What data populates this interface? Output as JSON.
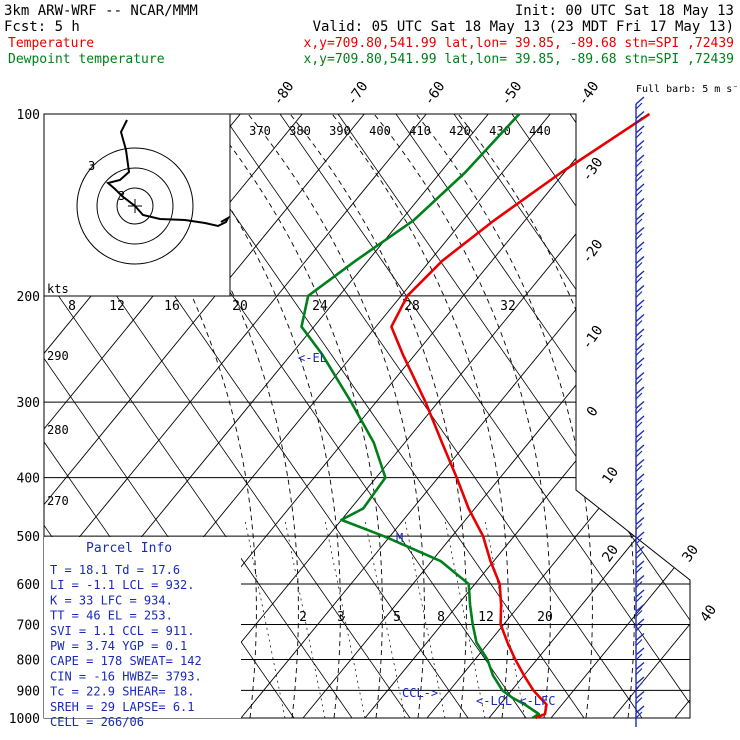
{
  "header": {
    "line1_left": "3km ARW-WRF -- NCAR/MMM",
    "line1_right": "Init: 00 UTC Sat 18 May 13",
    "line2_left": "Fcst:     5 h",
    "line2_right": "Valid: 05 UTC Sat 18 May 13 (23 MDT Fri 17 May 13)",
    "temp_label": "Temperature",
    "temp_info": "x,y=709.80,541.99   lat,lon= 39.85, -89.68  stn=SPI ,72439",
    "dew_label": "Dewpoint temperature",
    "dew_info": "x,y=709.80,541.99   lat,lon= 39.85, -89.68  stn=SPI ,72439"
  },
  "chart_data": {
    "type": "line",
    "title": "",
    "pressure_levels": [
      "100",
      "200",
      "300",
      "400",
      "500",
      "600",
      "700",
      "800",
      "900",
      "1000"
    ],
    "isotherm_labels": [
      "-80",
      "-70",
      "-60",
      "-50",
      "-40",
      "-30",
      "-20",
      "-10",
      "0",
      "10",
      "20",
      "30",
      "40"
    ],
    "theta_labels": [
      "370",
      "380",
      "390",
      "400",
      "410",
      "420",
      "430",
      "440"
    ],
    "mixing_ratio_labels": [
      "2",
      "3",
      "5",
      "8",
      "12",
      "20"
    ],
    "hodograph_speed_labels": [
      "8",
      "12",
      "16",
      "20",
      "24",
      "28",
      "32"
    ],
    "hodograph_unit": "kts",
    "hodograph_ring_labels": [
      "3",
      "3"
    ],
    "left_theta_labels": [
      "290",
      "280",
      "270"
    ],
    "wind_barb_note": "Full barb: 5 m s⁻¹",
    "el_marker": "<-EL",
    "ccl_marker": "CCL->",
    "lcl_lfc_marker": "<-LCL <-LFC",
    "series": [
      {
        "name": "Temperature",
        "color": "#e80000",
        "points": [
          [
            1000,
            17.5
          ],
          [
            985,
            18.5
          ],
          [
            950,
            17.5
          ],
          [
            925,
            15.5
          ],
          [
            900,
            13.5
          ],
          [
            850,
            10.0
          ],
          [
            800,
            6.5
          ],
          [
            750,
            3.0
          ],
          [
            700,
            -0.5
          ],
          [
            650,
            -3.0
          ],
          [
            600,
            -6.0
          ],
          [
            550,
            -10.5
          ],
          [
            500,
            -15.0
          ],
          [
            450,
            -21.0
          ],
          [
            400,
            -27.0
          ],
          [
            350,
            -34.0
          ],
          [
            300,
            -42.0
          ],
          [
            250,
            -52.0
          ],
          [
            225,
            -57.5
          ],
          [
            200,
            -59.0
          ],
          [
            175,
            -58.0
          ],
          [
            150,
            -55.0
          ],
          [
            125,
            -50.5
          ],
          [
            100,
            -44.0
          ]
        ]
      },
      {
        "name": "Dewpoint temperature",
        "color": "#00801a",
        "points": [
          [
            1000,
            17.0
          ],
          [
            985,
            17.5
          ],
          [
            950,
            14.0
          ],
          [
            925,
            11.0
          ],
          [
            900,
            8.5
          ],
          [
            850,
            5.0
          ],
          [
            800,
            2.0
          ],
          [
            750,
            -2.0
          ],
          [
            700,
            -5.0
          ],
          [
            650,
            -8.0
          ],
          [
            600,
            -11.0
          ],
          [
            550,
            -18.5
          ],
          [
            500,
            -31.0
          ],
          [
            470,
            -40.0
          ],
          [
            450,
            -38.0
          ],
          [
            400,
            -38.5
          ],
          [
            350,
            -45.0
          ],
          [
            300,
            -54.0
          ],
          [
            250,
            -65.0
          ],
          [
            225,
            -72.0
          ],
          [
            200,
            -75.0
          ],
          [
            175,
            -72.0
          ],
          [
            150,
            -68.0
          ],
          [
            125,
            -66.0
          ],
          [
            100,
            -65.0
          ]
        ]
      }
    ]
  },
  "parcel": {
    "title": "Parcel Info",
    "rows": [
      "T   =   18.1  Td =  17.6",
      "LI  =   -1.1  LCL =  932.",
      "K   =     33  LFC =  934.",
      "TT  =     46  EL  =  253.",
      "SVI =    1.1  CCL =  911.",
      "PW  =   3.74  YGP =   0.1",
      "CAPE =   178  SWEAT=   142",
      "CIN  =   -16  HWBZ= 3793.",
      "Tc   =  22.9  SHEAR=  18.",
      "SREH =    29  LAPSE=   6.1",
      "CELL = 266/06"
    ]
  },
  "colors": {
    "temperature": "#e80000",
    "dewpoint": "#00801a",
    "annotation": "#1a2ab8",
    "barbs": "#1a2ab8"
  }
}
